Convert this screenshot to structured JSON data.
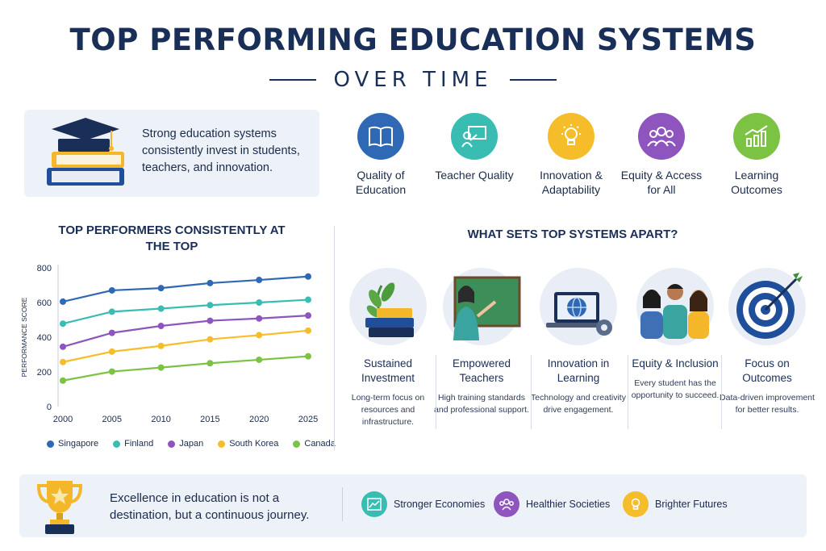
{
  "header": {
    "title": "TOP PERFORMING EDUCATION SYSTEMS",
    "subtitle": "OVER TIME"
  },
  "intro": {
    "text": "Strong education systems consistently invest in students, teachers, and innovation."
  },
  "factors": [
    {
      "label": "Quality of Education",
      "icon": "book-icon",
      "color": "#2f68b5"
    },
    {
      "label": "Teacher Quality",
      "icon": "teacher-board-icon",
      "color": "#39bdb3"
    },
    {
      "label": "Innovation & Adaptability",
      "icon": "lightbulb-icon",
      "color": "#f6bd2b"
    },
    {
      "label": "Equity & Access for All",
      "icon": "people-icon",
      "color": "#8e55bf"
    },
    {
      "label": "Learning Outcomes",
      "icon": "growth-chart-icon",
      "color": "#7cc243"
    }
  ],
  "chart_data": {
    "type": "line",
    "title": "TOP PERFORMERS CONSISTENTLY AT THE TOP",
    "xlabel": "",
    "ylabel": "PERFORMANCE SCORE",
    "x": [
      "2000",
      "2005",
      "2010",
      "2015",
      "2020",
      "2025"
    ],
    "ylim": [
      0,
      800
    ],
    "yticks": [
      "0",
      "200",
      "400",
      "600",
      "800"
    ],
    "grid": false,
    "legend_position": "bottom",
    "series": [
      {
        "name": "Singapore",
        "color": "#2f68b5",
        "values": [
          605,
          670,
          683,
          712,
          730,
          750
        ]
      },
      {
        "name": "Finland",
        "color": "#39bdb3",
        "values": [
          478,
          547,
          565,
          585,
          600,
          616
        ]
      },
      {
        "name": "Japan",
        "color": "#8e55bf",
        "values": [
          345,
          425,
          465,
          495,
          508,
          525
        ]
      },
      {
        "name": "South Korea",
        "color": "#f6bd2b",
        "values": [
          257,
          317,
          350,
          388,
          412,
          438
        ]
      },
      {
        "name": "Canada",
        "color": "#7cc243",
        "values": [
          150,
          202,
          225,
          250,
          270,
          290
        ]
      }
    ]
  },
  "apart": {
    "title": "WHAT SETS TOP SYSTEMS APART?",
    "items": [
      {
        "title": "Sustained Investment",
        "desc": "Long-term focus on resources and infrastructure.",
        "icon": "books-plant-icon"
      },
      {
        "title": "Empowered Teachers",
        "desc": "High training standards and professional support.",
        "icon": "teacher-icon"
      },
      {
        "title": "Innovation in Learning",
        "desc": "Technology and creativity drive engagement.",
        "icon": "laptop-globe-icon"
      },
      {
        "title": "Equity & Inclusion",
        "desc": "Every student has the opportunity to succeed.",
        "icon": "students-icon"
      },
      {
        "title": "Focus on Outcomes",
        "desc": "Data-driven improvement for better results.",
        "icon": "target-icon"
      }
    ]
  },
  "footer": {
    "text": "Excellence in education is not a destination, but a continuous journey.",
    "benefits": [
      {
        "label": "Stronger Economies",
        "icon": "trend-up-icon",
        "color": "#39bdb3"
      },
      {
        "label": "Healthier Societies",
        "icon": "community-icon",
        "color": "#8e55bf"
      },
      {
        "label": "Brighter Futures",
        "icon": "bulb-icon",
        "color": "#f6bd2b"
      }
    ]
  }
}
